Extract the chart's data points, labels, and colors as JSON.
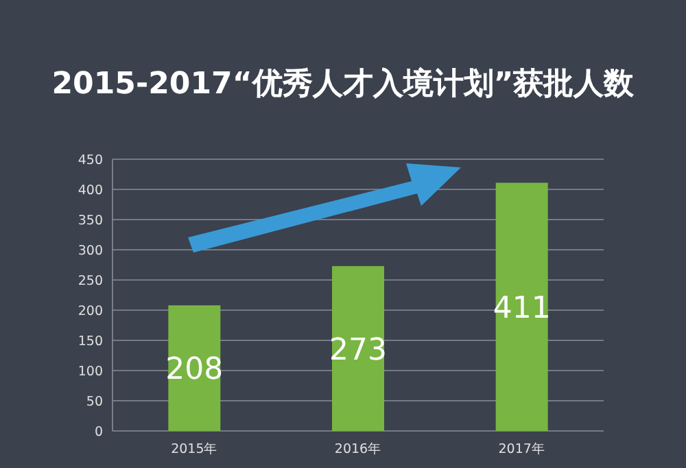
{
  "chart_data": {
    "type": "bar",
    "title": "2015-2017“优秀人才入境计划”获批人数",
    "categories": [
      "2015年",
      "2016年",
      "2017年"
    ],
    "values": [
      208,
      273,
      411
    ],
    "color": "#79b542",
    "ylim": [
      0,
      450
    ],
    "yticks": [
      0,
      50,
      100,
      150,
      200,
      250,
      300,
      350,
      400,
      450
    ],
    "grid": "y",
    "data_labels": true
  }
}
